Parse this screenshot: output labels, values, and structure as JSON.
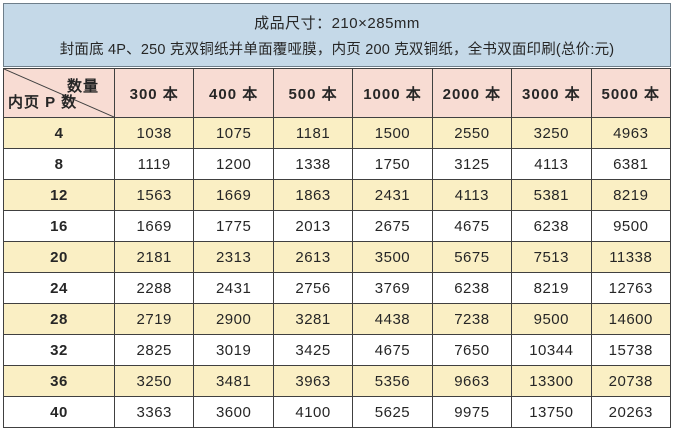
{
  "banner": {
    "line1": "成品尺寸：210×285mm",
    "line2": "封面底 4P、250 克双铜纸并单面覆哑膜，内页 200 克双铜纸，全书双面印刷(总价:元)"
  },
  "table": {
    "corner": {
      "top_right": "数量",
      "bottom_left": "内页 P 数"
    },
    "quantity_headers": [
      "300 本",
      "400 本",
      "500 本",
      "1000 本",
      "2000 本",
      "3000 本",
      "5000 本"
    ],
    "rows": [
      {
        "pages": "4",
        "prices": [
          "1038",
          "1075",
          "1181",
          "1500",
          "2550",
          "3250",
          "4963"
        ]
      },
      {
        "pages": "8",
        "prices": [
          "1119",
          "1200",
          "1338",
          "1750",
          "3125",
          "4113",
          "6381"
        ]
      },
      {
        "pages": "12",
        "prices": [
          "1563",
          "1669",
          "1863",
          "2431",
          "4113",
          "5381",
          "8219"
        ]
      },
      {
        "pages": "16",
        "prices": [
          "1669",
          "1775",
          "2013",
          "2675",
          "4675",
          "6238",
          "9500"
        ]
      },
      {
        "pages": "20",
        "prices": [
          "2181",
          "2313",
          "2613",
          "3500",
          "5675",
          "7513",
          "11338"
        ]
      },
      {
        "pages": "24",
        "prices": [
          "2288",
          "2431",
          "2756",
          "3769",
          "6238",
          "8219",
          "12763"
        ]
      },
      {
        "pages": "28",
        "prices": [
          "2719",
          "2900",
          "3281",
          "4438",
          "7238",
          "9500",
          "14600"
        ]
      },
      {
        "pages": "32",
        "prices": [
          "2825",
          "3019",
          "3425",
          "4675",
          "7650",
          "10344",
          "15738"
        ]
      },
      {
        "pages": "36",
        "prices": [
          "3250",
          "3481",
          "3963",
          "5356",
          "9663",
          "13300",
          "20738"
        ]
      },
      {
        "pages": "40",
        "prices": [
          "3363",
          "3600",
          "4100",
          "5625",
          "9975",
          "13750",
          "20263"
        ]
      }
    ]
  },
  "colors": {
    "banner_bg": "#c5d9e8",
    "banner_border": "#6e7e8a",
    "header_bg": "#f8dcd3",
    "row_stripe_bg": "#faefc4",
    "row_white_bg": "#ffffff",
    "grid_border": "#404040"
  }
}
